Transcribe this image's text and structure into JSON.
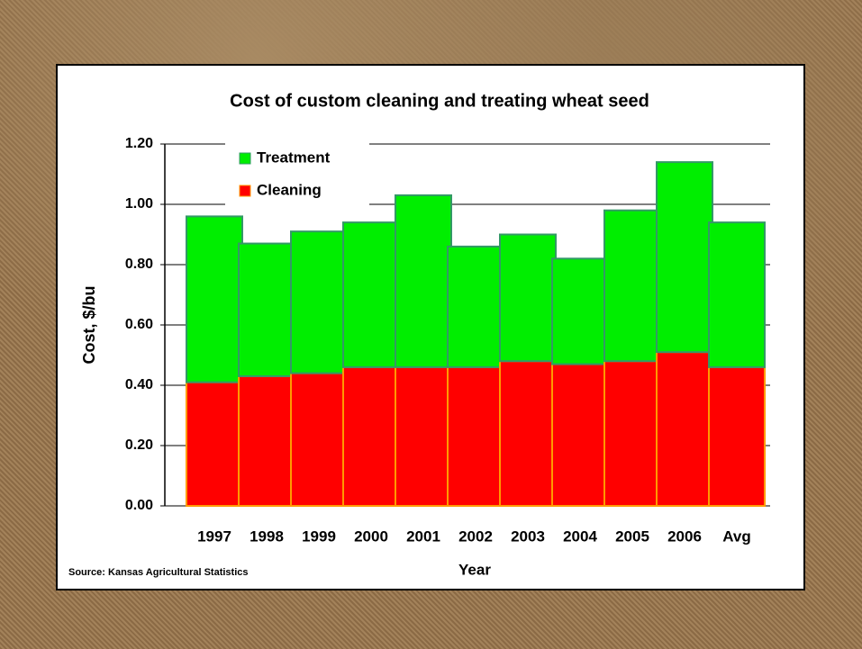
{
  "chart_data": {
    "type": "stacked_bar",
    "title": "Cost of custom cleaning and treating wheat seed",
    "x_label": "Year",
    "y_label": "Cost, $/bu",
    "source": "Source: Kansas Agricultural Statistics",
    "categories": [
      "1997",
      "1998",
      "1999",
      "2000",
      "2001",
      "2002",
      "2003",
      "2004",
      "2005",
      "2006",
      "Avg"
    ],
    "series": [
      {
        "name": "Cleaning",
        "color": "#ff0000",
        "values": [
          0.41,
          0.43,
          0.44,
          0.46,
          0.46,
          0.46,
          0.48,
          0.47,
          0.48,
          0.51,
          0.46
        ]
      },
      {
        "name": "Treatment",
        "color": "#00ee00",
        "values": [
          0.55,
          0.44,
          0.47,
          0.48,
          0.57,
          0.4,
          0.42,
          0.35,
          0.5,
          0.63,
          0.48
        ]
      }
    ],
    "ylim": [
      0,
      1.2
    ],
    "yticks": [
      {
        "value": 0,
        "label": "0.00"
      },
      {
        "value": 0.2,
        "label": "0.20"
      },
      {
        "value": 0.4,
        "label": "0.40"
      },
      {
        "value": 0.6,
        "label": "0.60"
      },
      {
        "value": 0.8,
        "label": "0.80"
      },
      {
        "value": 1.0,
        "label": "1.00"
      },
      {
        "value": 1.2,
        "label": "1.20"
      }
    ],
    "grid": true,
    "legend": "upper left"
  }
}
